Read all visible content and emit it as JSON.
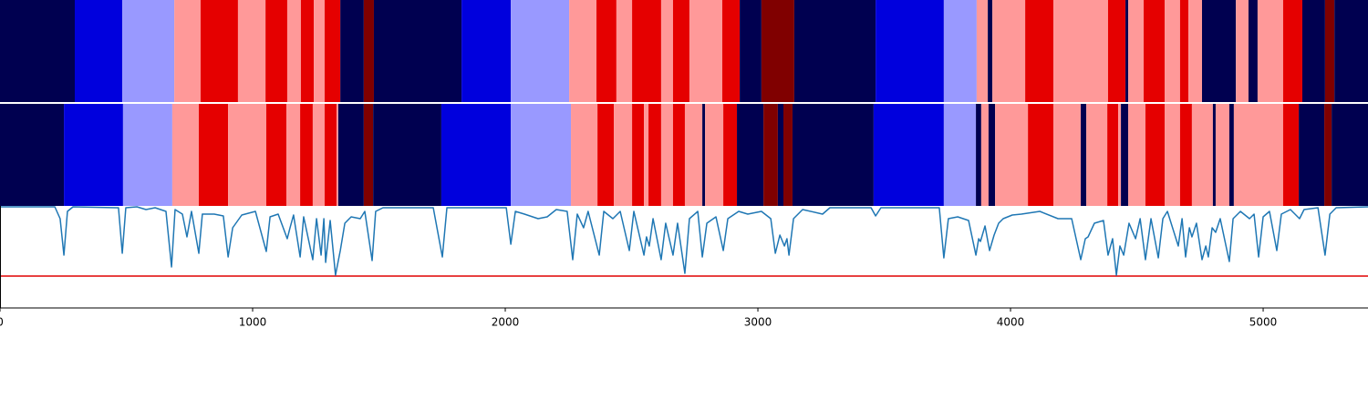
{
  "chart_data": [
    {
      "type": "segments",
      "xlim": [
        0,
        5415
      ],
      "colors": [
        "#000050",
        "#0000dd",
        "#9999ff",
        "#ff9999",
        "#e50000",
        "#800000"
      ],
      "edges": [
        0,
        296,
        484,
        690,
        794,
        942,
        1051,
        1137,
        1191,
        1242,
        1285,
        1347,
        1440,
        1480,
        1827,
        2022,
        2253,
        2361,
        2440,
        2502,
        2617,
        2664,
        2729,
        2859,
        2928,
        3014,
        3144,
        3466,
        3736,
        3866,
        3910,
        3928,
        4058,
        4170,
        4386,
        4455,
        4466,
        4527,
        4610,
        4671,
        4704,
        4758,
        4892,
        4942,
        4978,
        5079,
        5155,
        5245,
        5282,
        5415
      ],
      "labels": [
        0,
        1,
        2,
        3,
        4,
        3,
        4,
        3,
        4,
        3,
        4,
        0,
        5,
        0,
        1,
        2,
        3,
        4,
        3,
        4,
        3,
        4,
        3,
        4,
        0,
        5,
        0,
        1,
        2,
        3,
        0,
        3,
        4,
        3,
        4,
        0,
        3,
        4,
        3,
        4,
        3,
        0,
        3,
        0,
        3,
        4,
        0,
        5,
        0
      ]
    },
    {
      "type": "segments",
      "xlim": [
        0,
        5415
      ],
      "colors": [
        "#000050",
        "#0000dd",
        "#9999ff",
        "#ff9999",
        "#e50000",
        "#800000"
      ],
      "edges": [
        0,
        253,
        487,
        682,
        787,
        903,
        1054,
        1134,
        1188,
        1238,
        1285,
        1332,
        1339,
        1440,
        1477,
        1747,
        2022,
        2260,
        2365,
        2430,
        2502,
        2549,
        2567,
        2617,
        2664,
        2711,
        2780,
        2791,
        2863,
        2917,
        3022,
        3079,
        3101,
        3137,
        3458,
        3736,
        3863,
        3884,
        3913,
        3939,
        4069,
        4170,
        4278,
        4300,
        4383,
        4426,
        4437,
        4466,
        4534,
        4610,
        4671,
        4718,
        4801,
        4812,
        4866,
        4884,
        5079,
        5141,
        5242,
        5271,
        5415
      ],
      "labels": [
        0,
        1,
        2,
        3,
        4,
        3,
        4,
        3,
        4,
        3,
        4,
        3,
        0,
        5,
        0,
        1,
        2,
        3,
        4,
        3,
        4,
        3,
        4,
        3,
        4,
        3,
        0,
        3,
        4,
        0,
        5,
        0,
        5,
        0,
        1,
        2,
        0,
        3,
        0,
        3,
        4,
        3,
        0,
        3,
        4,
        3,
        0,
        3,
        4,
        3,
        4,
        3,
        0,
        3,
        0,
        3,
        4,
        0,
        5,
        0
      ]
    },
    {
      "type": "line",
      "xlim": [
        0,
        5415
      ],
      "ylim": [
        0,
        112
      ],
      "xticks": [
        0,
        1000,
        2000,
        3000,
        4000,
        5000
      ],
      "x": [
        0,
        217,
        238,
        253,
        267,
        289,
        469,
        484,
        498,
        542,
        578,
        614,
        657,
        679,
        693,
        722,
        740,
        758,
        787,
        801,
        848,
        884,
        903,
        921,
        957,
        1011,
        1054,
        1069,
        1101,
        1137,
        1148,
        1162,
        1188,
        1202,
        1238,
        1253,
        1271,
        1282,
        1289,
        1307,
        1328,
        1347,
        1365,
        1390,
        1426,
        1444,
        1473,
        1487,
        1516,
        1715,
        1751,
        1769,
        2004,
        2022,
        2040,
        2076,
        2130,
        2166,
        2202,
        2245,
        2267,
        2285,
        2310,
        2328,
        2372,
        2390,
        2426,
        2455,
        2491,
        2509,
        2549,
        2559,
        2570,
        2585,
        2617,
        2635,
        2664,
        2682,
        2711,
        2729,
        2762,
        2780,
        2798,
        2834,
        2863,
        2881,
        2924,
        2960,
        3014,
        3051,
        3069,
        3087,
        3105,
        3115,
        3123,
        3141,
        3177,
        3256,
        3285,
        3448,
        3466,
        3487,
        3718,
        3736,
        3754,
        3791,
        3834,
        3863,
        3874,
        3881,
        3899,
        3917,
        3935,
        3953,
        3971,
        4007,
        4043,
        4116,
        4188,
        4242,
        4278,
        4296,
        4307,
        4332,
        4368,
        4386,
        4404,
        4419,
        4433,
        4448,
        4469,
        4495,
        4513,
        4534,
        4556,
        4585,
        4603,
        4621,
        4664,
        4679,
        4693,
        4708,
        4718,
        4736,
        4758,
        4773,
        4783,
        4798,
        4812,
        4830,
        4866,
        4881,
        4910,
        4946,
        4964,
        4982,
        5000,
        5025,
        5054,
        5072,
        5108,
        5144,
        5162,
        5217,
        5245,
        5264,
        5289,
        5415
      ],
      "series": [
        {
          "color": "#1f77b4",
          "values": [
            111,
            111,
            98,
            58,
            106,
            111,
            110,
            60,
            110,
            111,
            108,
            110,
            106,
            45,
            108,
            103,
            78,
            106,
            60,
            103,
            103,
            101,
            56,
            88,
            102,
            106,
            62,
            100,
            103,
            76,
            88,
            102,
            56,
            100,
            53,
            98,
            58,
            98,
            50,
            96,
            36,
            63,
            93,
            100,
            98,
            106,
            52,
            106,
            110,
            110,
            56,
            110,
            110,
            70,
            106,
            103,
            98,
            100,
            108,
            106,
            53,
            103,
            88,
            106,
            58,
            106,
            98,
            106,
            63,
            106,
            58,
            78,
            68,
            98,
            53,
            93,
            58,
            93,
            38,
            98,
            106,
            56,
            93,
            100,
            63,
            98,
            106,
            103,
            106,
            98,
            60,
            80,
            68,
            76,
            58,
            98,
            108,
            103,
            110,
            110,
            101,
            110,
            110,
            55,
            98,
            100,
            96,
            58,
            76,
            73,
            90,
            63,
            80,
            93,
            98,
            102,
            103,
            106,
            98,
            98,
            53,
            76,
            78,
            93,
            96,
            58,
            76,
            36,
            68,
            58,
            93,
            76,
            98,
            53,
            98,
            55,
            98,
            106,
            68,
            98,
            56,
            88,
            78,
            93,
            53,
            68,
            56,
            88,
            83,
            98,
            51,
            98,
            106,
            98,
            103,
            56,
            100,
            106,
            63,
            103,
            108,
            98,
            108,
            110,
            58,
            103,
            110,
            111
          ]
        }
      ],
      "hlines": [
        {
          "value": 35,
          "color": "#e00000"
        }
      ]
    }
  ]
}
